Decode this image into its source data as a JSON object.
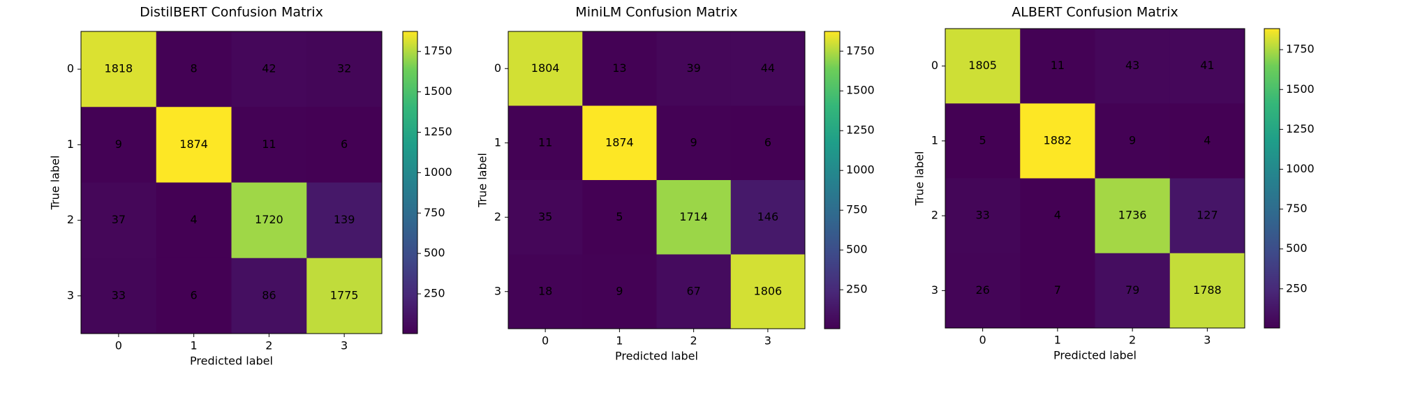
{
  "chart_data": [
    {
      "type": "heatmap",
      "title": "DistilBERT Confusion Matrix",
      "xlabel": "Predicted label",
      "ylabel": "True label",
      "x_categories": [
        "0",
        "1",
        "2",
        "3"
      ],
      "y_categories": [
        "0",
        "1",
        "2",
        "3"
      ],
      "values": [
        [
          1818,
          8,
          42,
          32
        ],
        [
          9,
          1874,
          11,
          6
        ],
        [
          37,
          4,
          1720,
          139
        ],
        [
          33,
          6,
          86,
          1775
        ]
      ],
      "colormap": "viridis",
      "clim": [
        4,
        1874
      ],
      "cticks": [
        250,
        500,
        750,
        1000,
        1250,
        1500,
        1750
      ]
    },
    {
      "type": "heatmap",
      "title": "MiniLM Confusion Matrix",
      "xlabel": "Predicted label",
      "ylabel": "True label",
      "x_categories": [
        "0",
        "1",
        "2",
        "3"
      ],
      "y_categories": [
        "0",
        "1",
        "2",
        "3"
      ],
      "values": [
        [
          1804,
          13,
          39,
          44
        ],
        [
          11,
          1874,
          9,
          6
        ],
        [
          35,
          5,
          1714,
          146
        ],
        [
          18,
          9,
          67,
          1806
        ]
      ],
      "colormap": "viridis",
      "clim": [
        5,
        1874
      ],
      "cticks": [
        250,
        500,
        750,
        1000,
        1250,
        1500,
        1750
      ]
    },
    {
      "type": "heatmap",
      "title": "ALBERT Confusion Matrix",
      "xlabel": "Predicted label",
      "ylabel": "True label",
      "x_categories": [
        "0",
        "1",
        "2",
        "3"
      ],
      "y_categories": [
        "0",
        "1",
        "2",
        "3"
      ],
      "values": [
        [
          1805,
          11,
          43,
          41
        ],
        [
          5,
          1882,
          9,
          4
        ],
        [
          33,
          4,
          1736,
          127
        ],
        [
          26,
          7,
          79,
          1788
        ]
      ],
      "colormap": "viridis",
      "clim": [
        4,
        1882
      ],
      "cticks": [
        250,
        500,
        750,
        1000,
        1250,
        1500,
        1750
      ]
    }
  ]
}
